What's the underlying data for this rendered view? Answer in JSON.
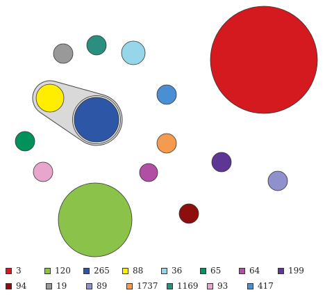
{
  "chart_data": {
    "type": "bubble",
    "title": "",
    "legend_placement": "bottom",
    "series": [
      {
        "label": "3",
        "color": "#d41a1f"
      },
      {
        "label": "120",
        "color": "#8bc34a"
      },
      {
        "label": "265",
        "color": "#2e56a6"
      },
      {
        "label": "88",
        "color": "#ffee00"
      },
      {
        "label": "36",
        "color": "#95d6ea"
      },
      {
        "label": "65",
        "color": "#00925a"
      },
      {
        "label": "64",
        "color": "#b04fa3"
      },
      {
        "label": "199",
        "color": "#5e3795"
      },
      {
        "label": "94",
        "color": "#8e0e0e"
      },
      {
        "label": "19",
        "color": "#999999"
      },
      {
        "label": "89",
        "color": "#9090cc"
      },
      {
        "label": "1737",
        "color": "#f59b4f"
      },
      {
        "label": "1169",
        "color": "#2a8f7f"
      },
      {
        "label": "93",
        "color": "#e8a6cc"
      },
      {
        "label": "417",
        "color": "#4a8fd3"
      }
    ],
    "grouped": [
      "88",
      "265"
    ]
  }
}
